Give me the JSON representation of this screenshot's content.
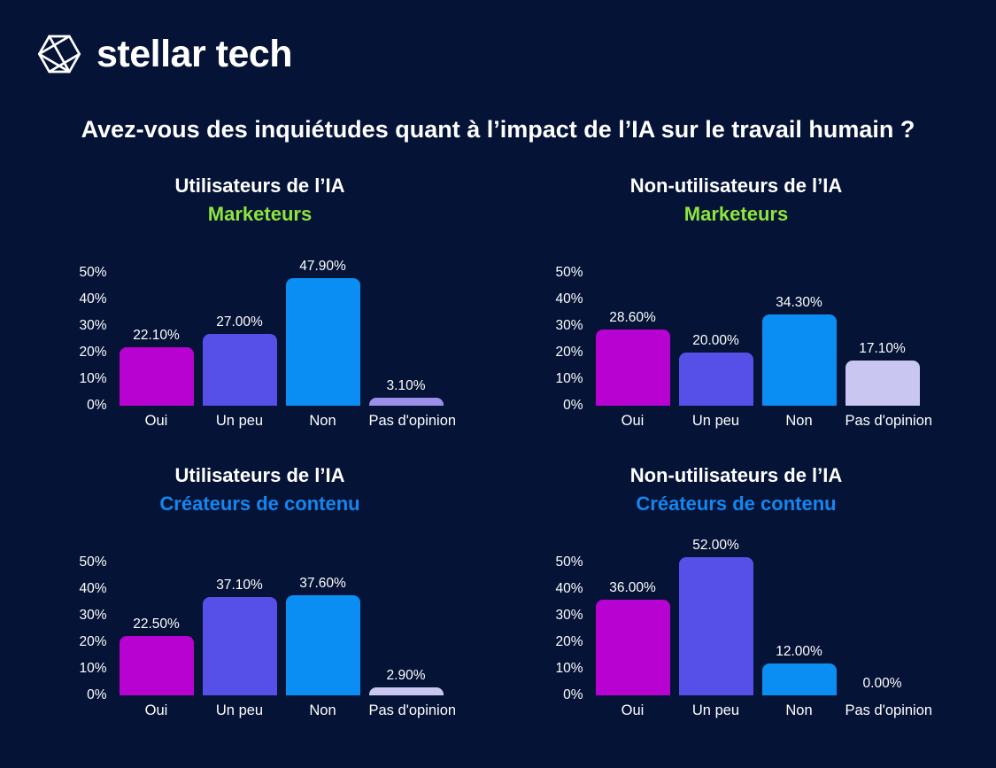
{
  "brand": {
    "name": "stellar tech",
    "logo_icon": "geometric-hexagon-icon"
  },
  "title": "Avez-vous des inquiétudes quant à l’impact de l’IA sur le travail humain ?",
  "colors": {
    "background": "#041336",
    "text": "#ffffff",
    "green_accent": "#8ce63d",
    "blue_accent": "#1486f0",
    "bar_oui": "#b802d2",
    "bar_un_peu": "#5650e8",
    "bar_non": "#0b8ef3",
    "bar_pas_opinion_light": "#c9c6f2",
    "bar_pas_opinion_medium": "#9a90ea"
  },
  "chart_data": [
    {
      "type": "bar",
      "title": "Utilisateurs de l’IA",
      "subtitle": "Marketeurs",
      "subtitle_color": "#8ce63d",
      "categories": [
        "Oui",
        "Un peu",
        "Non",
        "Pas d'opinion"
      ],
      "values": [
        22.1,
        27.0,
        47.9,
        3.1
      ],
      "value_labels": [
        "22.10%",
        "27.00%",
        "47.90%",
        "3.10%"
      ],
      "bar_colors": [
        "#b802d2",
        "#5650e8",
        "#0b8ef3",
        "#9a90ea"
      ],
      "ylim": [
        0,
        50
      ],
      "ytick_values": [
        50,
        40,
        30,
        20,
        10,
        0
      ],
      "ytick_labels": [
        "50%",
        "40%",
        "30%",
        "20%",
        "10%",
        "0%"
      ],
      "grid": false,
      "legend": false
    },
    {
      "type": "bar",
      "title": "Non-utilisateurs de l’IA",
      "subtitle": "Marketeurs",
      "subtitle_color": "#8ce63d",
      "categories": [
        "Oui",
        "Un peu",
        "Non",
        "Pas d'opinion"
      ],
      "values": [
        28.6,
        20.0,
        34.3,
        17.1
      ],
      "value_labels": [
        "28.60%",
        "20.00%",
        "34.30%",
        "17.10%"
      ],
      "bar_colors": [
        "#b802d2",
        "#5650e8",
        "#0b8ef3",
        "#c9c6f2"
      ],
      "ylim": [
        0,
        50
      ],
      "ytick_values": [
        50,
        40,
        30,
        20,
        10,
        0
      ],
      "ytick_labels": [
        "50%",
        "40%",
        "30%",
        "20%",
        "10%",
        "0%"
      ],
      "grid": false,
      "legend": false
    },
    {
      "type": "bar",
      "title": "Utilisateurs de l’IA",
      "subtitle": "Créateurs de contenu",
      "subtitle_color": "#1486f0",
      "categories": [
        "Oui",
        "Un peu",
        "Non",
        "Pas d'opinion"
      ],
      "values": [
        22.5,
        37.1,
        37.6,
        2.9
      ],
      "value_labels": [
        "22.50%",
        "37.10%",
        "37.60%",
        "2.90%"
      ],
      "bar_colors": [
        "#b802d2",
        "#5650e8",
        "#0b8ef3",
        "#c9c6f2"
      ],
      "ylim": [
        0,
        50
      ],
      "ytick_values": [
        50,
        40,
        30,
        20,
        10,
        0
      ],
      "ytick_labels": [
        "50%",
        "40%",
        "30%",
        "20%",
        "10%",
        "0%"
      ],
      "grid": false,
      "legend": false
    },
    {
      "type": "bar",
      "title": "Non-utilisateurs de l’IA",
      "subtitle": "Créateurs de contenu",
      "subtitle_color": "#1486f0",
      "categories": [
        "Oui",
        "Un peu",
        "Non",
        "Pas d'opinion"
      ],
      "values": [
        36.0,
        52.0,
        12.0,
        0.0
      ],
      "value_labels": [
        "36.00%",
        "52.00%",
        "12.00%",
        "0.00%"
      ],
      "bar_colors": [
        "#b802d2",
        "#5650e8",
        "#0b8ef3",
        "#c9c6f2"
      ],
      "ylim": [
        0,
        50
      ],
      "ytick_values": [
        50,
        40,
        30,
        20,
        10,
        0
      ],
      "ytick_labels": [
        "50%",
        "40%",
        "30%",
        "20%",
        "10%",
        "0%"
      ],
      "grid": false,
      "legend": false
    }
  ]
}
